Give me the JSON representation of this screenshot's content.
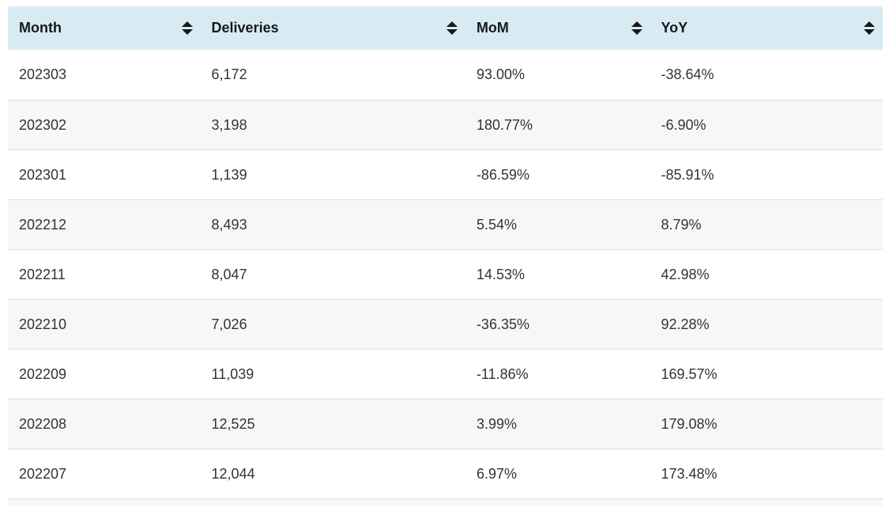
{
  "table": {
    "columns": [
      {
        "key": "month",
        "label": "Month",
        "icon": "sort-icon",
        "sortable": true
      },
      {
        "key": "deliveries",
        "label": "Deliveries",
        "icon": "sort-icon",
        "sortable": true
      },
      {
        "key": "mom",
        "label": "MoM",
        "icon": "sort-icon",
        "sortable": true
      },
      {
        "key": "yoy",
        "label": "YoY",
        "icon": "sort-icon",
        "sortable": true
      }
    ],
    "rows": [
      {
        "month": "202303",
        "deliveries": "6,172",
        "mom": "93.00%",
        "yoy": "-38.64%"
      },
      {
        "month": "202302",
        "deliveries": "3,198",
        "mom": "180.77%",
        "yoy": "-6.90%"
      },
      {
        "month": "202301",
        "deliveries": "1,139",
        "mom": "-86.59%",
        "yoy": "-85.91%"
      },
      {
        "month": "202212",
        "deliveries": "8,493",
        "mom": "5.54%",
        "yoy": "8.79%"
      },
      {
        "month": "202211",
        "deliveries": "8,047",
        "mom": "14.53%",
        "yoy": "42.98%"
      },
      {
        "month": "202210",
        "deliveries": "7,026",
        "mom": "-36.35%",
        "yoy": "92.28%"
      },
      {
        "month": "202209",
        "deliveries": "11,039",
        "mom": "-11.86%",
        "yoy": "169.57%"
      },
      {
        "month": "202208",
        "deliveries": "12,525",
        "mom": "3.99%",
        "yoy": "179.08%"
      },
      {
        "month": "202207",
        "deliveries": "12,044",
        "mom": "6.97%",
        "yoy": "173.48%"
      }
    ],
    "partial_next_row_visible": true,
    "colors": {
      "header_bg": "#d9ebf2",
      "header_text": "#131920",
      "sort_icon": "#15181d",
      "body_text": "#333333",
      "row_alt_bg": "#f7f7f7",
      "row_bg": "#ffffff",
      "row_border": "#e0e0e0"
    }
  }
}
